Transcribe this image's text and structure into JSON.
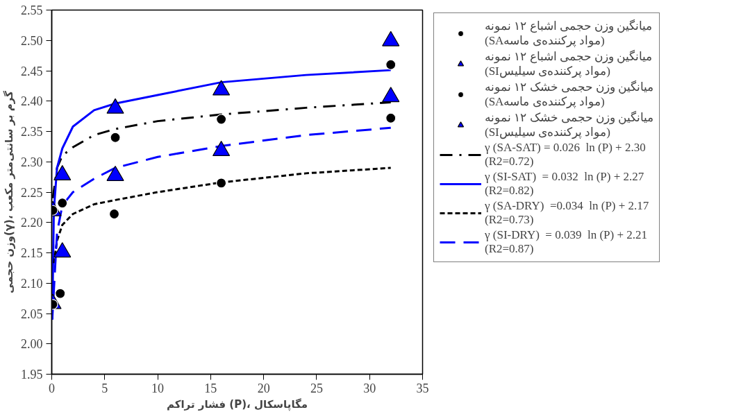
{
  "chart_data": {
    "type": "scatter",
    "xlabel": "فشار تراکم (P)، مگاپاسکال",
    "ylabel": "وزن حجمی(γ)، گرم بر سانتی‌متر مکعب",
    "xlim": [
      0,
      35
    ],
    "xticks": [
      0,
      5,
      10,
      15,
      20,
      25,
      30,
      35
    ],
    "ylim": [
      1.95,
      2.55
    ],
    "yticks": [
      1.95,
      {
        "value": 2.0,
        "label": "2.00"
      },
      2.05,
      {
        "value": 2.1,
        "label": "2.10"
      },
      2.15,
      {
        "value": 2.2,
        "label": "2.20"
      },
      2.25,
      {
        "value": 2.3,
        "label": "2.30"
      },
      2.35,
      {
        "value": 2.4,
        "label": "2.40"
      },
      2.45,
      {
        "value": 2.5,
        "label": "2.50"
      },
      2.55
    ],
    "grid": false,
    "legend": "right",
    "series": [
      {
        "name": "میانگین وزن حجمی اشباع ۱۲ نمونه\n(SAمواد پرکننده‌ی ماسه)",
        "color": "#000000",
        "marker": "circle",
        "x": [
          0.1,
          1,
          6,
          16,
          32
        ],
        "values": [
          2.22,
          2.232,
          2.34,
          2.37,
          2.46
        ]
      },
      {
        "name": "میانگین وزن حجمی اشباع ۱۲ نمونه\n(SIمواد پرکننده‌ی سیلیس)",
        "color": "#0000ff",
        "marker": "triangle",
        "x": [
          0.1,
          1,
          6,
          16,
          32
        ],
        "values": [
          2.219,
          2.278,
          2.388,
          2.418,
          2.499
        ]
      },
      {
        "name": "میانگین وزن حجمی خشک ۱۲ نمونه\n(SAمواد پرکننده‌ی ماسه)",
        "color": "#000000",
        "marker": "circle",
        "x": [
          0.1,
          0.8,
          5.9,
          16,
          32
        ],
        "values": [
          2.065,
          2.083,
          2.214,
          2.265,
          2.372
        ]
      },
      {
        "name": "میانگین وزن حجمی خشک ۱۲ نمونه\n(SIمواد پرکننده‌ی سیلیس)",
        "color": "#0000ff",
        "marker": "triangle",
        "x": [
          0.1,
          1,
          6,
          16,
          32
        ],
        "values": [
          2.066,
          2.151,
          2.277,
          2.318,
          2.407
        ]
      },
      {
        "type": "line",
        "name": "γ (SA-SAT) = 0.026  ln (P) + 2.30\n(R2=0.72)",
        "color": "#000000",
        "line_style": "dashdot",
        "x": [
          0.1,
          0.5,
          1,
          2,
          4,
          6,
          10,
          16,
          24,
          32
        ],
        "values": [
          2.24,
          2.29,
          2.31,
          2.324,
          2.344,
          2.354,
          2.367,
          2.378,
          2.389,
          2.398
        ]
      },
      {
        "type": "line",
        "name": "γ (SI-SAT)  = 0.032  ln (P) + 2.27\n(R2=0.82)",
        "color": "#0000ff",
        "line_style": "solid",
        "x": [
          0.05,
          0.2,
          0.5,
          1,
          2,
          4,
          6,
          10,
          16,
          24,
          32
        ],
        "values": [
          2.04,
          2.22,
          2.29,
          2.322,
          2.358,
          2.385,
          2.396,
          2.41,
          2.431,
          2.443,
          2.451
        ]
      },
      {
        "type": "line",
        "name": "γ (SA-DRY)  =0.034  ln (P) + 2.17\n(R2=0.73)",
        "color": "#000000",
        "line_style": "dotted",
        "x": [
          0.2,
          0.5,
          1,
          2,
          4,
          6,
          10,
          16,
          24,
          32
        ],
        "values": [
          2.133,
          2.17,
          2.196,
          2.214,
          2.23,
          2.237,
          2.25,
          2.266,
          2.281,
          2.29
        ]
      },
      {
        "type": "line",
        "name": "γ (SI-DRY)  = 0.039  ln (P) + 2.21\n(R2=0.87)",
        "color": "#0000ff",
        "line_style": "dashed",
        "x": [
          0.05,
          0.5,
          1,
          2,
          4,
          6,
          10,
          16,
          24,
          32
        ],
        "values": [
          2.04,
          2.183,
          2.228,
          2.25,
          2.272,
          2.29,
          2.308,
          2.326,
          2.344,
          2.356
        ]
      }
    ]
  }
}
